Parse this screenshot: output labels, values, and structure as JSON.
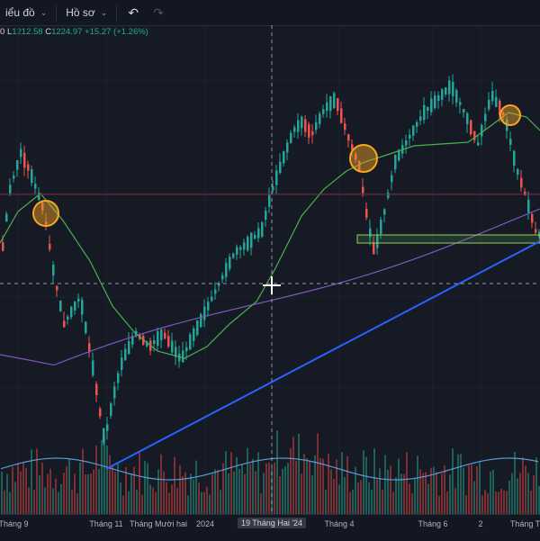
{
  "toolbar": {
    "chart_menu_label": "iểu đồ",
    "profile_menu_label": "Hồ sơ",
    "undo_icon": "undo-icon",
    "redo_icon": "redo-icon"
  },
  "ohlc": {
    "o_tail": "0",
    "low_key": "L",
    "low_val": "1212.58",
    "close_key": "C",
    "close_val": "1224.97",
    "change": "+15.27 (+1.26%)"
  },
  "colors": {
    "up": "#26a69a",
    "down": "#ef5350",
    "ma_green": "#4caf50",
    "ma_purple": "#7e57c2",
    "trendline": "#2962ff",
    "highlight_circle": "#f5a623",
    "volume_ma": "#5b9bd5"
  },
  "time_axis": {
    "ticks": [
      {
        "label": "Tháng 9",
        "selected": false
      },
      {
        "label": "Tháng 11",
        "selected": false
      },
      {
        "label": "Tháng Mười hai",
        "selected": false
      },
      {
        "label": "2024",
        "selected": false
      },
      {
        "label": "19 Tháng Hai '24",
        "selected": true
      },
      {
        "label": "Tháng 4",
        "selected": false
      },
      {
        "label": "Tháng 6",
        "selected": false
      },
      {
        "label": "2",
        "selected": false
      },
      {
        "label": "Tháng Tá",
        "selected": false
      }
    ]
  }
}
